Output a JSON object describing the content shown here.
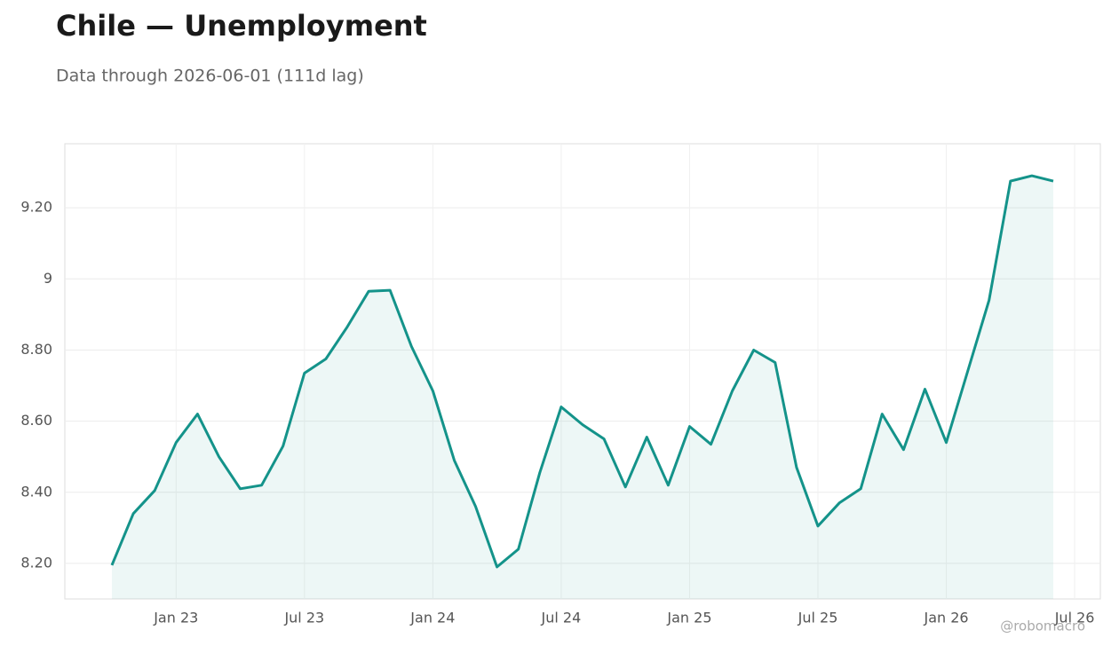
{
  "chart_data": {
    "type": "line",
    "title": "Chile — Unemployment",
    "subtitle": "Data through 2026-06-01 (111d lag)",
    "credit": "@robomacro",
    "color": "#14938a",
    "grid": true,
    "x": [
      "2022-10",
      "2022-11",
      "2022-12",
      "2023-01",
      "2023-02",
      "2023-03",
      "2023-04",
      "2023-05",
      "2023-06",
      "2023-07",
      "2023-08",
      "2023-09",
      "2023-10",
      "2023-11",
      "2023-12",
      "2024-01",
      "2024-02",
      "2024-03",
      "2024-04",
      "2024-05",
      "2024-06",
      "2024-07",
      "2024-08",
      "2024-09",
      "2024-10",
      "2024-11",
      "2024-12",
      "2025-01",
      "2025-02",
      "2025-03",
      "2025-04",
      "2025-05",
      "2025-06",
      "2025-07",
      "2025-08",
      "2025-09",
      "2025-10",
      "2025-11",
      "2025-12",
      "2026-01",
      "2026-02",
      "2026-03",
      "2026-04",
      "2026-05",
      "2026-06"
    ],
    "values": [
      8.195,
      8.34,
      8.405,
      8.54,
      8.62,
      8.5,
      8.41,
      8.42,
      8.53,
      8.735,
      8.775,
      8.865,
      8.965,
      8.968,
      8.81,
      8.685,
      8.49,
      8.36,
      8.19,
      8.24,
      8.455,
      8.64,
      8.59,
      8.55,
      8.415,
      8.555,
      8.42,
      8.585,
      8.535,
      8.685,
      8.8,
      8.765,
      8.47,
      8.305,
      8.37,
      8.41,
      8.62,
      8.52,
      8.69,
      8.54,
      8.74,
      8.94,
      9.275,
      9.29,
      9.275
    ],
    "ylim": [
      8.1,
      9.38
    ],
    "yticks": [
      {
        "value": 8.2,
        "label": "8.20"
      },
      {
        "value": 8.4,
        "label": "8.40"
      },
      {
        "value": 8.6,
        "label": "8.60"
      },
      {
        "value": 8.8,
        "label": "8.80"
      },
      9,
      {
        "value": 9.2,
        "label": "9.20"
      }
    ],
    "xticks": [
      {
        "value": "2023-01",
        "label": "Jan 23"
      },
      {
        "value": "2023-07",
        "label": "Jul 23"
      },
      {
        "value": "2024-01",
        "label": "Jan 24"
      },
      {
        "value": "2024-07",
        "label": "Jul 24"
      },
      {
        "value": "2025-01",
        "label": "Jan 25"
      },
      {
        "value": "2025-07",
        "label": "Jul 25"
      },
      {
        "value": "2026-01",
        "label": "Jan 26"
      },
      {
        "value": "2026-07",
        "label": "Jul 26"
      }
    ]
  }
}
